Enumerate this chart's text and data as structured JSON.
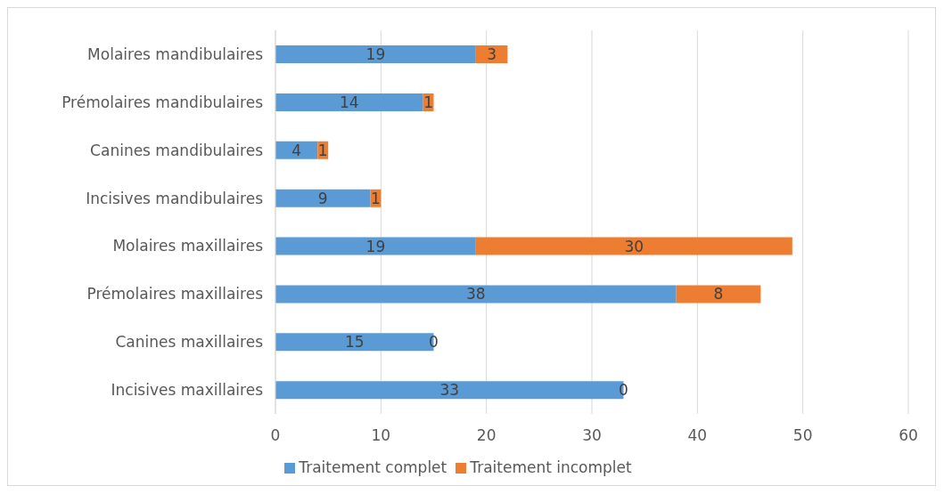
{
  "chart_data": {
    "type": "bar",
    "orientation": "horizontal",
    "stacked": true,
    "categories": [
      "Molaires mandibulaires",
      "Prémolaires mandibulaires",
      "Canines mandibulaires",
      "Incisives mandibulaires",
      "Molaires maxillaires",
      "Prémolaires maxillaires",
      "Canines maxillaires",
      "Incisives maxillaires"
    ],
    "series": [
      {
        "name": "Traitement complet",
        "color": "#5b9bd5",
        "values": [
          19,
          14,
          4,
          9,
          19,
          38,
          15,
          33
        ]
      },
      {
        "name": "Traitement incomplet",
        "color": "#ed7d31",
        "values": [
          3,
          1,
          1,
          1,
          30,
          8,
          0,
          0
        ]
      }
    ],
    "xlim": [
      0,
      60
    ],
    "xticks": [
      0,
      10,
      20,
      30,
      40,
      50,
      60
    ],
    "grid": "x",
    "legend": "bottom",
    "data_labels": true
  }
}
